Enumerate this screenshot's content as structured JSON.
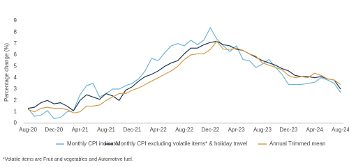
{
  "chart_data": {
    "type": "line",
    "y_label": "Percentage change (%)",
    "categories": [
      "Aug-20",
      null,
      null,
      null,
      "Dec-20",
      null,
      null,
      null,
      "Apr-21",
      null,
      null,
      null,
      "Aug-21",
      null,
      null,
      null,
      "Dec-21",
      null,
      null,
      null,
      "Apr-22",
      null,
      null,
      null,
      "Aug-22",
      null,
      null,
      null,
      "Dec-22",
      null,
      null,
      null,
      "Apr-23",
      null,
      null,
      null,
      "Aug-23",
      null,
      null,
      null,
      "Dec-23",
      null,
      null,
      null,
      "Apr-24",
      null,
      null,
      null,
      "Aug-24"
    ],
    "series": [
      {
        "name": "Monthly CPI indicator",
        "color": "#6bb5d6",
        "values": [
          1.3,
          0.6,
          0.7,
          1.1,
          0.4,
          0.5,
          1.0,
          1.1,
          2.5,
          3.3,
          3.5,
          2.3,
          2.6,
          3.0,
          3.0,
          3.3,
          3.5,
          3.9,
          4.6,
          5.7,
          5.5,
          6.2,
          6.8,
          7.0,
          6.8,
          7.3,
          6.9,
          7.3,
          8.4,
          7.4,
          6.8,
          6.3,
          6.8,
          5.6,
          5.5,
          4.9,
          5.2,
          5.6,
          4.9,
          4.3,
          3.4,
          3.4,
          3.4,
          3.5,
          3.6,
          4.0,
          3.8,
          3.5,
          2.7
        ]
      },
      {
        "name": "Monthly CPI excluding volatile items* & holiday travel",
        "color": "#1f3552",
        "values": [
          1.3,
          1.4,
          1.8,
          2.0,
          1.7,
          1.8,
          1.5,
          1.1,
          2.0,
          2.5,
          2.3,
          2.1,
          2.6,
          2.4,
          2.0,
          2.9,
          3.2,
          3.7,
          4.1,
          4.3,
          4.6,
          5.0,
          5.3,
          5.5,
          6.1,
          6.6,
          6.6,
          6.9,
          7.1,
          7.2,
          6.9,
          6.8,
          6.5,
          6.4,
          6.1,
          5.8,
          5.5,
          5.3,
          5.1,
          4.8,
          4.6,
          4.2,
          4.1,
          4.1,
          4.0,
          4.1,
          3.9,
          3.8,
          3.0
        ]
      },
      {
        "name": "Annual Trimmed mean",
        "color": "#d69a46",
        "values": [
          1.2,
          1.0,
          1.3,
          1.4,
          1.3,
          1.3,
          1.2,
          0.9,
          1.0,
          1.5,
          1.5,
          1.6,
          2.0,
          2.3,
          2.6,
          2.6,
          2.9,
          3.1,
          3.4,
          3.7,
          4.0,
          4.3,
          4.6,
          5.0,
          5.6,
          6.0,
          6.1,
          6.1,
          6.5,
          7.2,
          6.5,
          6.5,
          6.6,
          6.4,
          6.1,
          5.9,
          5.3,
          5.1,
          4.9,
          4.7,
          4.2,
          4.0,
          4.1,
          4.0,
          4.4,
          4.2,
          3.9,
          3.8,
          3.4
        ]
      }
    ],
    "ylim": [
      0,
      9
    ],
    "yticks": [
      0,
      1,
      2,
      3,
      4,
      5,
      6,
      7,
      8,
      9
    ],
    "grid": false,
    "legend": "bottom",
    "footnote": "*Volatile items are Fruit and vegetables and Automotive fuel."
  }
}
